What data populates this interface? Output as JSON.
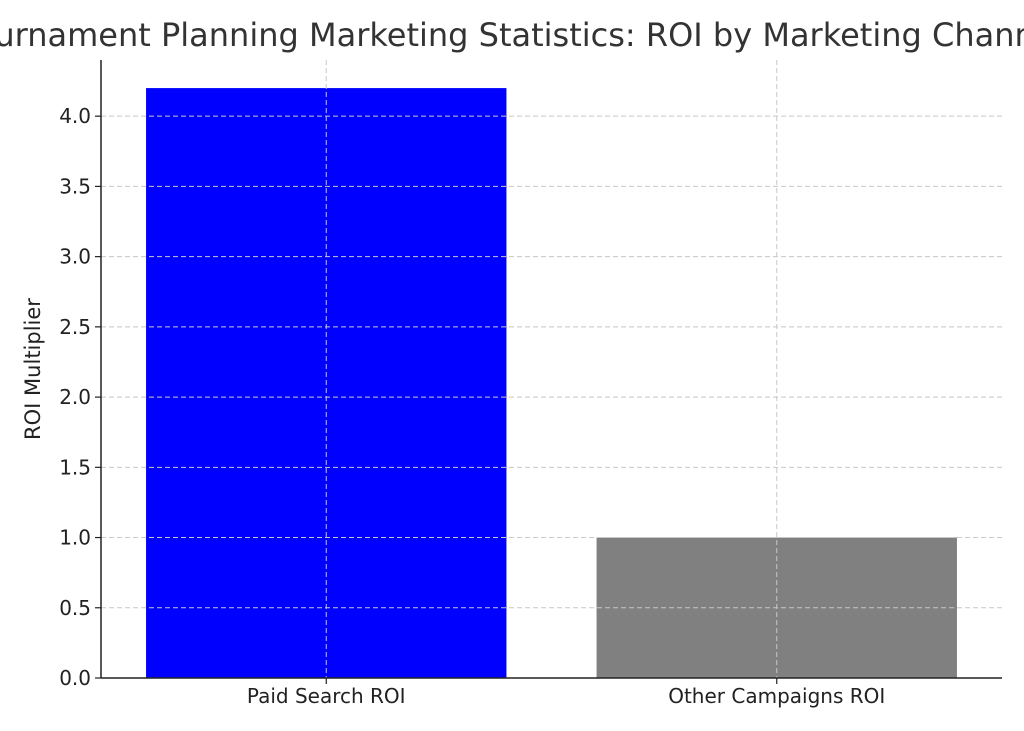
{
  "chart_data": {
    "type": "bar",
    "title": "Tournament Planning Marketing Statistics: ROI by Marketing Channel",
    "xlabel": "",
    "ylabel": "ROI Multiplier",
    "categories": [
      "Paid Search ROI",
      "Other Campaigns ROI"
    ],
    "values": [
      4.2,
      1.0
    ],
    "colors": [
      "#0000ff",
      "#808080"
    ],
    "ylim": [
      0,
      4.4
    ],
    "yticks": [
      0.0,
      0.5,
      1.0,
      1.5,
      2.0,
      2.5,
      3.0,
      3.5,
      4.0
    ],
    "ytick_labels": [
      "0.0",
      "0.5",
      "1.0",
      "1.5",
      "2.0",
      "2.5",
      "3.0",
      "3.5",
      "4.0"
    ],
    "grid": true,
    "legend": "none"
  }
}
